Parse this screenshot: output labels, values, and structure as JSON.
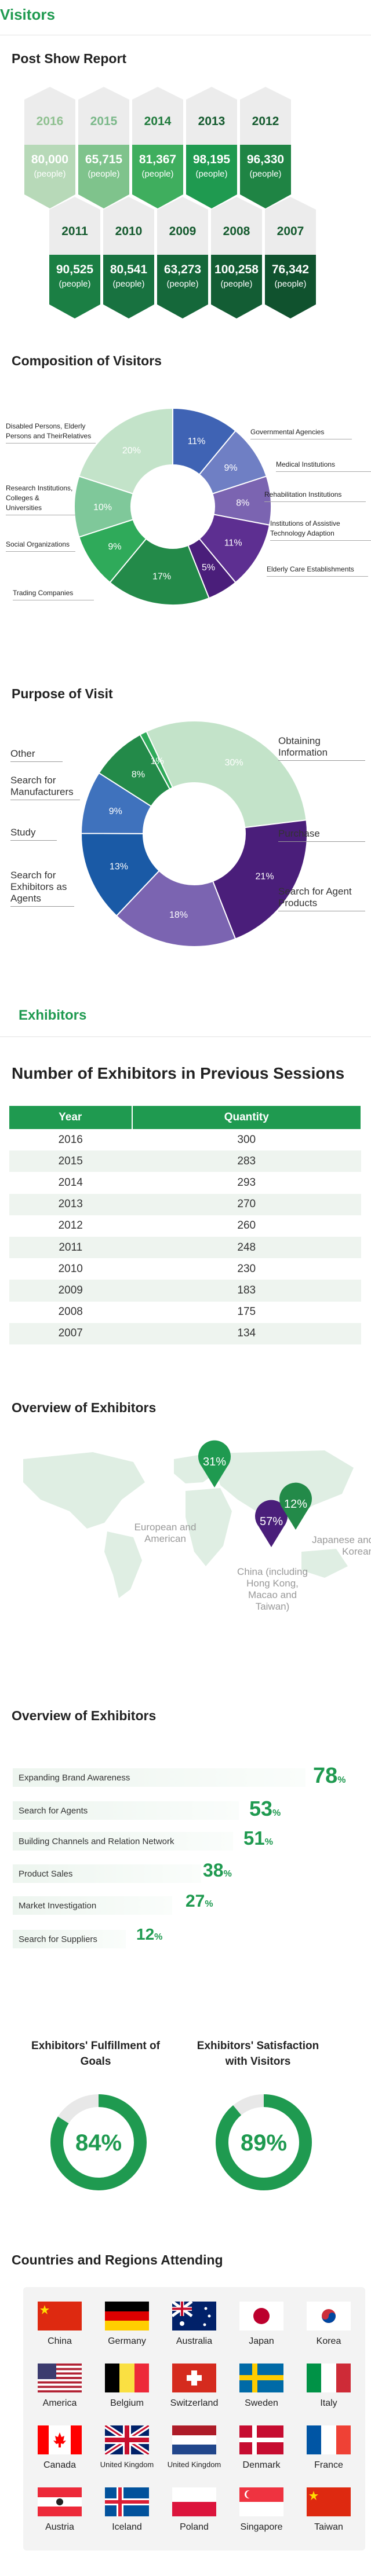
{
  "visitors": {
    "heading": "Visitors",
    "post_show_title": "Post Show Report",
    "hexes": [
      {
        "year": "2016",
        "count": "80,000",
        "unit": "(people)",
        "top": "#b7d9b8",
        "yearColor": "#8fc090"
      },
      {
        "year": "2015",
        "count": "65,715",
        "unit": "(people)",
        "top": "#7fc38c",
        "yearColor": "#7ab889"
      },
      {
        "year": "2014",
        "count": "81,367",
        "unit": "(people)",
        "top": "#3fae5e",
        "yearColor": "#1f7a3c"
      },
      {
        "year": "2013",
        "count": "98,195",
        "unit": "(people)",
        "top": "#1f9a50",
        "yearColor": "#145a2e"
      },
      {
        "year": "2012",
        "count": "96,330",
        "unit": "(people)",
        "top": "#1f8444",
        "yearColor": "#145a2e"
      },
      {
        "year": "2011",
        "count": "90,525",
        "unit": "(people)",
        "top": "#1b7f44",
        "yearColor": "#145a2e"
      },
      {
        "year": "2010",
        "count": "80,541",
        "unit": "(people)",
        "top": "#187240",
        "yearColor": "#145a2e"
      },
      {
        "year": "2009",
        "count": "63,273",
        "unit": "(people)",
        "top": "#15683a",
        "yearColor": "#145a2e"
      },
      {
        "year": "2008",
        "count": "100,258",
        "unit": "(people)",
        "top": "#135d34",
        "yearColor": "#145a2e"
      },
      {
        "year": "2007",
        "count": "76,342",
        "unit": "(people)",
        "top": "#10522e",
        "yearColor": "#145a2e"
      }
    ],
    "composition_title": "Composition of Visitors",
    "purpose_title": "Purpose of Visit"
  },
  "chart_data": [
    {
      "type": "pie",
      "title": "Composition of Visitors",
      "categories": [
        "Governmental Agencies",
        "Medical Institutions",
        "Rehabilitation Institutions",
        "Institutions of Assistive Technology Adaption",
        "Elderly Care Establishments",
        "Trading Companies",
        "Social Organizations",
        "Research Institutions, Colleges & Universities",
        "Disabled Persons, Elderly Persons and Their Relatives"
      ],
      "values": [
        11,
        9,
        8,
        11,
        5,
        17,
        9,
        10,
        20
      ],
      "labels": [
        "11%",
        "9%",
        "8%",
        "11%",
        "5%",
        "17%",
        "9%",
        "10%",
        "20%"
      ],
      "colors": [
        "#3f63b4",
        "#6f7fc4",
        "#7b64b1",
        "#5d2f91",
        "#4a1e7a",
        "#238a49",
        "#2faa5a",
        "#7fc89a",
        "#c3e3c9"
      ]
    },
    {
      "type": "pie",
      "title": "Purpose of Visit",
      "categories": [
        "Obtaining Information",
        "Purchase",
        "Search for Agent Products",
        "Search for Exhibitors as Agents",
        "Study",
        "Search for Manufacturers",
        "Other"
      ],
      "values": [
        30,
        21,
        18,
        13,
        9,
        8,
        1
      ],
      "labels": [
        "30%",
        "21%",
        "18%",
        "13%",
        "9%",
        "8%",
        "1%"
      ],
      "colors": [
        "#c3e3c9",
        "#4a1e7a",
        "#7b64b1",
        "#1a5aa6",
        "#3f72bd",
        "#238a49",
        "#2faa5a"
      ]
    },
    {
      "type": "table",
      "title": "Number of Exhibitors in Previous Sessions",
      "columns": [
        "Year",
        "Quantity"
      ],
      "x": [
        "2016",
        "2015",
        "2014",
        "2013",
        "2012",
        "2011",
        "2010",
        "2009",
        "2008",
        "2007"
      ],
      "values": [
        300,
        283,
        293,
        270,
        260,
        248,
        230,
        183,
        175,
        134
      ]
    },
    {
      "type": "bar",
      "title": "Overview of Exhibitors",
      "categories": [
        "Expanding Brand Awareness",
        "Search for Agents",
        "Building Channels and Relation Network",
        "Product Sales",
        "Market Investigation",
        "Search for Suppliers"
      ],
      "values": [
        78,
        53,
        51,
        38,
        27,
        12
      ]
    }
  ],
  "composition_labels": {
    "left": [
      {
        "text": "Disabled Persons, Elderly Persons and TheirRelatives"
      },
      {
        "text": "Research Institutions, Colleges & Universities"
      },
      {
        "text": "Social Organizations"
      },
      {
        "text": "Trading Companies"
      }
    ],
    "right": [
      {
        "text": "Governmental Agencies"
      },
      {
        "text": "Medical Institutions"
      },
      {
        "text": "Rehabilitation Institutions"
      },
      {
        "text": "Institutions of Assistive Technology Adaption"
      },
      {
        "text": "Elderly Care Establishments"
      }
    ]
  },
  "purpose_labels": {
    "left": [
      "Other",
      "Search for Manufacturers",
      "Study",
      "Search for Exhibitors as Agents"
    ],
    "right": [
      "Obtaining Information",
      "Purchase",
      "Search for Agent Products"
    ]
  },
  "exhibitors": {
    "heading": "Exhibitors",
    "sessions_title": "Number of Exhibitors in Previous Sessions",
    "table_headers": [
      "Year",
      "Quantity"
    ],
    "overview_title": "Overview of Exhibitors",
    "map": {
      "pins": [
        {
          "pct": "31%",
          "label": "European and American",
          "color": "#1f9a50"
        },
        {
          "pct": "57%",
          "label": "China (including Hong Kong, Macao and Taiwan)",
          "color": "#4a1e7a"
        },
        {
          "pct": "12%",
          "label": "Japanese and Korean",
          "color": "#238a49"
        }
      ]
    },
    "overview2_title": "Overview of Exhibitors",
    "bars": [
      {
        "label": "Expanding Brand Awareness",
        "value": "78",
        "unit": "%"
      },
      {
        "label": "Search for Agents",
        "value": "53",
        "unit": "%"
      },
      {
        "label": "Building Channels and Relation Network",
        "value": "51",
        "unit": "%"
      },
      {
        "label": "Product Sales",
        "value": "38",
        "unit": "%"
      },
      {
        "label": "Market Investigation",
        "value": "27",
        "unit": "%"
      },
      {
        "label": "Search for Suppliers",
        "value": "12",
        "unit": "%"
      }
    ],
    "fulfillment": {
      "title": "Exhibitors' Fulfillment of Goals",
      "pct": "84%",
      "value": 84
    },
    "satisfaction": {
      "title": "Exhibitors' Satisfaction with Visitors",
      "pct": "89%",
      "value": 89
    }
  },
  "countries": {
    "title": "Countries and Regions Attending",
    "items": [
      {
        "name": "China",
        "flag": "china"
      },
      {
        "name": "Germany",
        "flag": "germany"
      },
      {
        "name": "Australia",
        "flag": "australia"
      },
      {
        "name": "Japan",
        "flag": "japan"
      },
      {
        "name": "Korea",
        "flag": "korea"
      },
      {
        "name": "America",
        "flag": "usa"
      },
      {
        "name": "Belgium",
        "flag": "belgium"
      },
      {
        "name": "Switzerland",
        "flag": "switzerland"
      },
      {
        "name": "Sweden",
        "flag": "sweden"
      },
      {
        "name": "Italy",
        "flag": "italy"
      },
      {
        "name": "Canada",
        "flag": "canada"
      },
      {
        "name": "United Kingdom",
        "flag": "uk"
      },
      {
        "name": "United Kingdom",
        "flag": "netherlands"
      },
      {
        "name": "Denmark",
        "flag": "denmark"
      },
      {
        "name": "France",
        "flag": "france"
      },
      {
        "name": "Austria",
        "flag": "austria"
      },
      {
        "name": "Iceland",
        "flag": "iceland"
      },
      {
        "name": "Poland",
        "flag": "poland"
      },
      {
        "name": "Singapore",
        "flag": "singapore"
      },
      {
        "name": "Taiwan",
        "flag": "china"
      }
    ]
  },
  "colors": {
    "brand": "#1f9a50",
    "purple": "#4a1e7a",
    "light_green": "#c3e3c9"
  }
}
